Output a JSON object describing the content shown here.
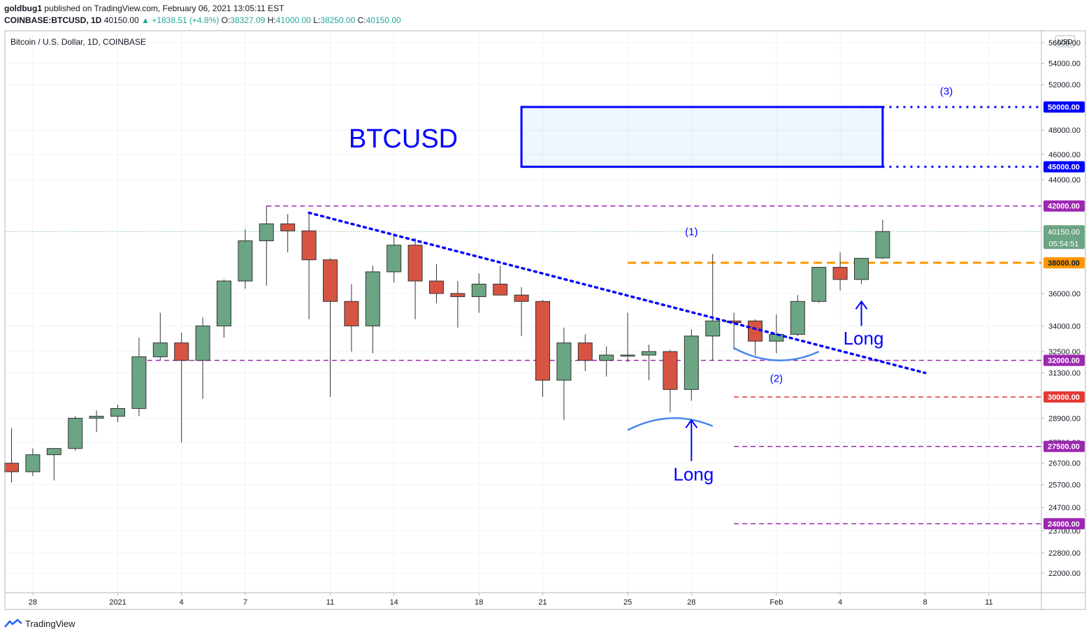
{
  "header": {
    "publisher": "goldbug1",
    "published_text": "published on TradingView.com, February 06, 2021 13:05:11 EST",
    "symbol": "COINBASE:BTCUSD, 1D",
    "last": "40150.00",
    "change": "▲ +1838.51 (+4.8%)",
    "o_label": "O:",
    "o": "38327.09",
    "h_label": "H:",
    "h": "41000.00",
    "l_label": "L:",
    "l": "38250.00",
    "c_label": "C:",
    "c": "40150.00"
  },
  "footer": {
    "brand": "TradingView"
  },
  "chart_data": {
    "type": "candlestick",
    "title": "Bitcoin / U.S. Dollar, 1D, COINBASE",
    "currency": "USD",
    "annotation_title": "BTCUSD",
    "candles": [
      {
        "date": "2020-12-27",
        "o": 26700,
        "h": 28400,
        "l": 25800,
        "c": 26300
      },
      {
        "date": "2020-12-28",
        "o": 26300,
        "h": 27400,
        "l": 26100,
        "c": 27100
      },
      {
        "date": "2020-12-29",
        "o": 27100,
        "h": 27400,
        "l": 25900,
        "c": 27400
      },
      {
        "date": "2020-12-30",
        "o": 27400,
        "h": 29000,
        "l": 27300,
        "c": 28900
      },
      {
        "date": "2020-12-31",
        "o": 28900,
        "h": 29300,
        "l": 28200,
        "c": 29000
      },
      {
        "date": "2021-01-01",
        "o": 29000,
        "h": 29600,
        "l": 28700,
        "c": 29400
      },
      {
        "date": "2021-01-02",
        "o": 29400,
        "h": 33300,
        "l": 29000,
        "c": 32200
      },
      {
        "date": "2021-01-03",
        "o": 32200,
        "h": 34800,
        "l": 32000,
        "c": 33000
      },
      {
        "date": "2021-01-04",
        "o": 33000,
        "h": 33600,
        "l": 27700,
        "c": 32000
      },
      {
        "date": "2021-01-05",
        "o": 32000,
        "h": 34500,
        "l": 29900,
        "c": 34000
      },
      {
        "date": "2021-01-06",
        "o": 34000,
        "h": 36900,
        "l": 33300,
        "c": 36800
      },
      {
        "date": "2021-01-07",
        "o": 36800,
        "h": 40300,
        "l": 36300,
        "c": 39500
      },
      {
        "date": "2021-01-08",
        "o": 39500,
        "h": 42000,
        "l": 36500,
        "c": 40700
      },
      {
        "date": "2021-01-09",
        "o": 40700,
        "h": 41400,
        "l": 38700,
        "c": 40200
      },
      {
        "date": "2021-01-10",
        "o": 40200,
        "h": 41400,
        "l": 34400,
        "c": 38200
      },
      {
        "date": "2021-01-11",
        "o": 38200,
        "h": 38300,
        "l": 30000,
        "c": 35500
      },
      {
        "date": "2021-01-12",
        "o": 35500,
        "h": 36600,
        "l": 32500,
        "c": 34000
      },
      {
        "date": "2021-01-13",
        "o": 34000,
        "h": 37800,
        "l": 32400,
        "c": 37400
      },
      {
        "date": "2021-01-14",
        "o": 37400,
        "h": 40000,
        "l": 36700,
        "c": 39200
      },
      {
        "date": "2021-01-15",
        "o": 39200,
        "h": 39700,
        "l": 34400,
        "c": 36800
      },
      {
        "date": "2021-01-16",
        "o": 36800,
        "h": 37900,
        "l": 35400,
        "c": 36000
      },
      {
        "date": "2021-01-17",
        "o": 36000,
        "h": 36800,
        "l": 33900,
        "c": 35800
      },
      {
        "date": "2021-01-18",
        "o": 35800,
        "h": 37300,
        "l": 34800,
        "c": 36600
      },
      {
        "date": "2021-01-19",
        "o": 36600,
        "h": 37800,
        "l": 35900,
        "c": 35900
      },
      {
        "date": "2021-01-20",
        "o": 35900,
        "h": 36400,
        "l": 33400,
        "c": 35500
      },
      {
        "date": "2021-01-21",
        "o": 35500,
        "h": 35600,
        "l": 30000,
        "c": 30900
      },
      {
        "date": "2021-01-22",
        "o": 30900,
        "h": 33900,
        "l": 28800,
        "c": 33000
      },
      {
        "date": "2021-01-23",
        "o": 33000,
        "h": 33500,
        "l": 31400,
        "c": 32000
      },
      {
        "date": "2021-01-24",
        "o": 32000,
        "h": 32800,
        "l": 31100,
        "c": 32300
      },
      {
        "date": "2021-01-25",
        "o": 32300,
        "h": 34800,
        "l": 31900,
        "c": 32300
      },
      {
        "date": "2021-01-26",
        "o": 32300,
        "h": 32900,
        "l": 30900,
        "c": 32500
      },
      {
        "date": "2021-01-27",
        "o": 32500,
        "h": 32600,
        "l": 29200,
        "c": 30400
      },
      {
        "date": "2021-01-28",
        "o": 30400,
        "h": 33800,
        "l": 29800,
        "c": 33400
      },
      {
        "date": "2021-01-29",
        "o": 33400,
        "h": 38600,
        "l": 32000,
        "c": 34300
      },
      {
        "date": "2021-01-30",
        "o": 34300,
        "h": 34800,
        "l": 32600,
        "c": 34200
      },
      {
        "date": "2021-01-31",
        "o": 34300,
        "h": 34400,
        "l": 32300,
        "c": 33100
      },
      {
        "date": "2021-02-01",
        "o": 33100,
        "h": 34700,
        "l": 32400,
        "c": 33500
      },
      {
        "date": "2021-02-02",
        "o": 33500,
        "h": 35900,
        "l": 33400,
        "c": 35500
      },
      {
        "date": "2021-02-03",
        "o": 35500,
        "h": 37700,
        "l": 35400,
        "c": 37700
      },
      {
        "date": "2021-02-04",
        "o": 37700,
        "h": 38700,
        "l": 36200,
        "c": 36900
      },
      {
        "date": "2021-02-05",
        "o": 36900,
        "h": 38300,
        "l": 36600,
        "c": 38300
      },
      {
        "date": "2021-02-06",
        "o": 38327.09,
        "h": 41000,
        "l": 38250,
        "c": 40150
      }
    ],
    "xticks": [
      {
        "date": "2020-12-28",
        "label": "28"
      },
      {
        "date": "2021-01-01",
        "label": "2021"
      },
      {
        "date": "2021-01-04",
        "label": "4"
      },
      {
        "date": "2021-01-07",
        "label": "7"
      },
      {
        "date": "2021-01-11",
        "label": "11"
      },
      {
        "date": "2021-01-14",
        "label": "14"
      },
      {
        "date": "2021-01-18",
        "label": "18"
      },
      {
        "date": "2021-01-21",
        "label": "21"
      },
      {
        "date": "2021-01-25",
        "label": "25"
      },
      {
        "date": "2021-01-28",
        "label": "28"
      },
      {
        "date": "2021-02-01",
        "label": "Feb"
      },
      {
        "date": "2021-02-04",
        "label": "4"
      },
      {
        "date": "2021-02-08",
        "label": "8"
      },
      {
        "date": "2021-02-11",
        "label": "11"
      }
    ],
    "yticks": [
      {
        "v": 56000,
        "label": "56000.00"
      },
      {
        "v": 54000,
        "label": "54000.00"
      },
      {
        "v": 52000,
        "label": "52000.00"
      },
      {
        "v": 48000,
        "label": "48000.00"
      },
      {
        "v": 46000,
        "label": "46000.00"
      },
      {
        "v": 44000,
        "label": "44000.00"
      },
      {
        "v": 36000,
        "label": "36000.00"
      },
      {
        "v": 34000,
        "label": "34000.00"
      },
      {
        "v": 32500,
        "label": "32500.00"
      },
      {
        "v": 31300,
        "label": "31300.00"
      },
      {
        "v": 28900,
        "label": "28900.00"
      },
      {
        "v": 27700,
        "label": "27700.00"
      },
      {
        "v": 26700,
        "label": "26700.00"
      },
      {
        "v": 25700,
        "label": "25700.00"
      },
      {
        "v": 24700,
        "label": "24700.00"
      },
      {
        "v": 23700,
        "label": "23700.00"
      },
      {
        "v": 22800,
        "label": "22800.00"
      },
      {
        "v": 22000,
        "label": "22000.00"
      }
    ],
    "levels": [
      {
        "v": 50000,
        "label": "50000.00",
        "color": "#0000ff",
        "style": "dotted",
        "from": "2021-02-05"
      },
      {
        "v": 45000,
        "label": "45000.00",
        "color": "#0000ff",
        "style": "dotted",
        "from": "2021-02-05"
      },
      {
        "v": 42000,
        "label": "42000.00",
        "color": "#9c27b0",
        "style": "dashed",
        "from": "2021-01-08"
      },
      {
        "v": 38000,
        "label": "38000.00",
        "color": "#ff9800",
        "style": "dashed",
        "from": "2021-01-25"
      },
      {
        "v": 32000,
        "label": "32000.00",
        "color": "#9c27b0",
        "style": "dashed",
        "from": "2021-01-02"
      },
      {
        "v": 30000,
        "label": "30000.00",
        "color": "#e53935",
        "style": "dashed",
        "from": "2021-01-30"
      },
      {
        "v": 27500,
        "label": "27500.00",
        "color": "#9c27b0",
        "style": "dashed",
        "from": "2021-01-30"
      },
      {
        "v": 24000,
        "label": "24000.00",
        "color": "#9c27b0",
        "style": "dashed",
        "from": "2021-01-30"
      }
    ],
    "last_price": {
      "v": 40150,
      "label": "40150.00",
      "countdown": "05:54:51"
    },
    "target_box": {
      "from": "2021-01-20",
      "to": "2021-02-06",
      "top": 50000,
      "bottom": 45000
    },
    "trendline": {
      "from": {
        "date": "2021-01-10",
        "v": 41500
      },
      "to": {
        "date": "2021-02-08",
        "v": 31300
      }
    },
    "annotations": [
      {
        "text": "(1)",
        "date": "2021-01-28",
        "v": 39900
      },
      {
        "text": "(2)",
        "date": "2021-02-01",
        "v": 30800
      },
      {
        "text": "(3)",
        "date": "2021-02-09",
        "v": 51100
      },
      {
        "text": "Long",
        "date": "2021-01-28",
        "v": 25900,
        "arrow_top": 28800,
        "arrow_bottom": 26800
      },
      {
        "text": "Long",
        "date": "2021-02-05",
        "v": 32900,
        "arrow_top": 35500,
        "arrow_bottom": 34000
      }
    ],
    "curves": [
      {
        "from": {
          "date": "2021-01-25",
          "v": 28300
        },
        "mid": {
          "date": "2021-01-27",
          "v": 28900
        },
        "to": {
          "date": "2021-01-29",
          "v": 28500
        }
      },
      {
        "from": {
          "date": "2021-01-30",
          "v": 32700
        },
        "mid": {
          "date": "2021-02-01",
          "v": 32000
        },
        "to": {
          "date": "2021-02-03",
          "v": 32500
        }
      }
    ],
    "colors": {
      "up": "#6ba583",
      "down": "#d75442",
      "wick": "#333333",
      "grid": "#f0f3fa"
    }
  }
}
